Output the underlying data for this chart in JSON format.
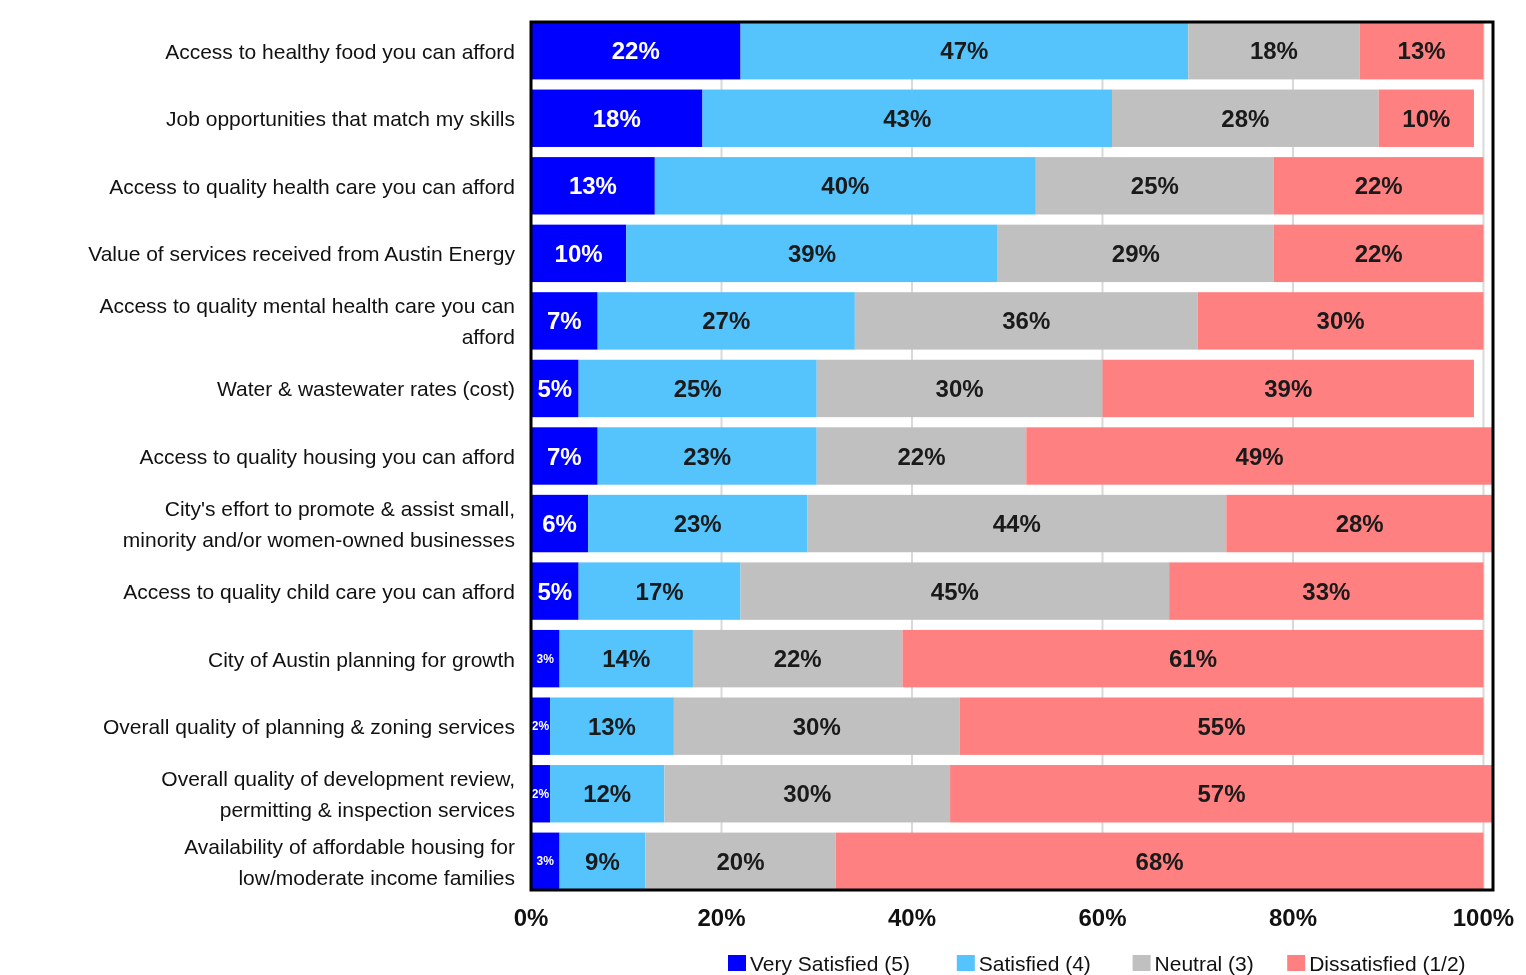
{
  "chart_data": {
    "type": "bar",
    "orientation": "horizontal",
    "stacked": true,
    "categories": [
      "Access to healthy food you can afford",
      "Job opportunities that match my skills",
      "Access to quality health care you can afford",
      "Value of services received from Austin Energy",
      "Access to quality mental health care you can afford",
      "Water & wastewater rates (cost)",
      "Access to quality housing you can afford",
      "City's effort to promote & assist small, minority and/or women-owned businesses",
      "Access to quality child care you can afford",
      "City of Austin planning for growth",
      "Overall quality of planning & zoning services",
      "Overall quality of development review, permitting & inspection services",
      "Availability of affordable housing for low/moderate income families"
    ],
    "series": [
      {
        "name": "Very Satisfied (5)",
        "color": "#0000ff",
        "values": [
          22,
          18,
          13,
          10,
          7,
          5,
          7,
          6,
          5,
          3,
          2,
          2,
          3
        ],
        "value_labels": [
          "22%",
          "18%",
          "13%",
          "10%",
          "7%",
          "5%",
          "7%",
          "6%",
          "5%",
          "3%",
          "2%",
          "2%",
          "3%"
        ]
      },
      {
        "name": "Satisfied (4)",
        "color": "#55c3fc",
        "values": [
          47,
          43,
          40,
          39,
          27,
          25,
          23,
          23,
          17,
          14,
          13,
          12,
          9
        ],
        "value_labels": [
          "47%",
          "43%",
          "40%",
          "39%",
          "27%",
          "25%",
          "23%",
          "23%",
          "17%",
          "14%",
          "13%",
          "12%",
          "9%"
        ]
      },
      {
        "name": "Neutral (3)",
        "color": "#c0c0c0",
        "values": [
          18,
          28,
          25,
          29,
          36,
          30,
          22,
          44,
          45,
          22,
          30,
          30,
          20
        ],
        "value_labels": [
          "18%",
          "28%",
          "25%",
          "29%",
          "36%",
          "30%",
          "22%",
          "44%",
          "45%",
          "22%",
          "30%",
          "30%",
          "20%"
        ]
      },
      {
        "name": "Dissatisfied (1/2)",
        "color": "#fe8080",
        "values": [
          13,
          10,
          22,
          22,
          30,
          39,
          49,
          28,
          33,
          61,
          55,
          57,
          68
        ],
        "value_labels": [
          "13%",
          "10%",
          "22%",
          "22%",
          "30%",
          "39%",
          "49%",
          "28%",
          "33%",
          "61%",
          "55%",
          "57%",
          "68%"
        ]
      }
    ],
    "xlim": [
      0,
      101
    ],
    "xticks": [
      {
        "value": 0,
        "label": "0%"
      },
      {
        "value": 20,
        "label": "20%"
      },
      {
        "value": 40,
        "label": "40%"
      },
      {
        "value": 60,
        "label": "60%"
      },
      {
        "value": 80,
        "label": "80%"
      },
      {
        "value": 100,
        "label": "100%"
      }
    ],
    "grid": "x",
    "legend": "bottom"
  }
}
